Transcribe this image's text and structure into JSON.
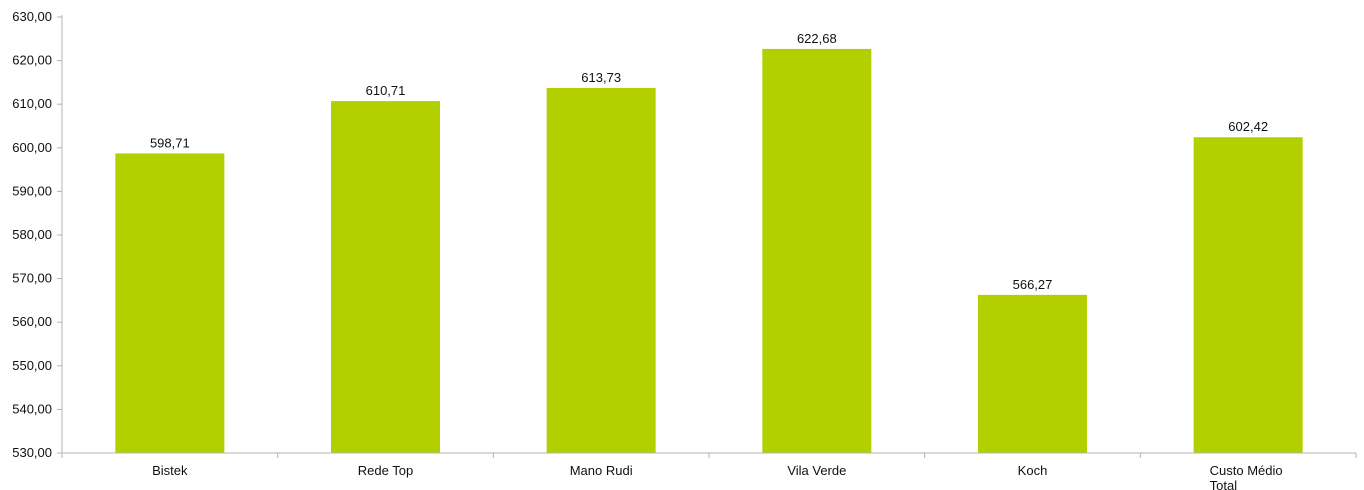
{
  "chart_data": {
    "type": "bar",
    "title": "",
    "xlabel": "",
    "ylabel": "",
    "categories": [
      "Bistek",
      "Rede Top",
      "Mano Rudi",
      "Vila Verde",
      "Koch",
      "Custo Médio Total"
    ],
    "category_label_lines": [
      [
        "Bistek"
      ],
      [
        "Rede Top"
      ],
      [
        "Mano Rudi"
      ],
      [
        "Vila Verde"
      ],
      [
        "Koch"
      ],
      [
        "Custo Médio",
        "Total"
      ]
    ],
    "values": [
      598.71,
      610.71,
      613.73,
      622.68,
      566.27,
      602.42
    ],
    "value_labels": [
      "598,71",
      "610,71",
      "613,73",
      "622,68",
      "566,27",
      "602,42"
    ],
    "ylim": [
      530,
      630
    ],
    "yticks": [
      530,
      540,
      550,
      560,
      570,
      580,
      590,
      600,
      610,
      620,
      630
    ],
    "ytick_labels": [
      "530,00",
      "540,00",
      "550,00",
      "560,00",
      "570,00",
      "580,00",
      "590,00",
      "600,00",
      "610,00",
      "620,00",
      "630,00"
    ],
    "grid": false,
    "legend": "none",
    "bar_color": "#b2d000",
    "axis_color": "#b3b3b3"
  }
}
